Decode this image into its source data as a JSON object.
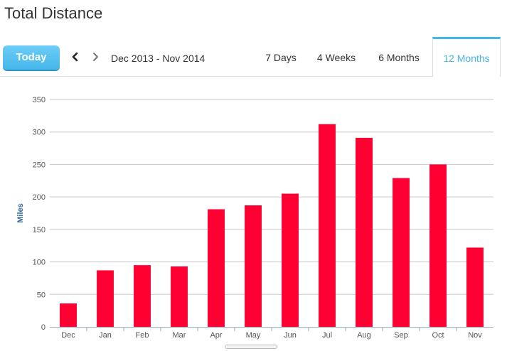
{
  "page": {
    "title": "Total Distance"
  },
  "toolbar": {
    "today_label": "Today",
    "date_range": "Dec 2013 - Nov 2014",
    "tabs": [
      {
        "label": "7 Days",
        "active": false
      },
      {
        "label": "4 Weeks",
        "active": false
      },
      {
        "label": "6 Months",
        "active": false
      },
      {
        "label": "12 Months",
        "active": true
      }
    ]
  },
  "colors": {
    "accent": "#45b6ea",
    "bar": "#ff0033",
    "grid": "#c8c8c8",
    "axis_label": "#336699"
  },
  "icons": {
    "prev": "chevron-left-icon",
    "next": "chevron-right-icon"
  },
  "chart_data": {
    "type": "bar",
    "categories": [
      "Dec",
      "Jan",
      "Feb",
      "Mar",
      "Apr",
      "May",
      "Jun",
      "Jul",
      "Aug",
      "Sep",
      "Oct",
      "Nov"
    ],
    "values": [
      36,
      87,
      95,
      93,
      181,
      187,
      205,
      312,
      291,
      229,
      250,
      122
    ],
    "ylabel": "Miles",
    "xlabel": "",
    "ylim": [
      0,
      350
    ],
    "yticks": [
      0,
      50,
      100,
      150,
      200,
      250,
      300,
      350
    ],
    "grid": true
  }
}
